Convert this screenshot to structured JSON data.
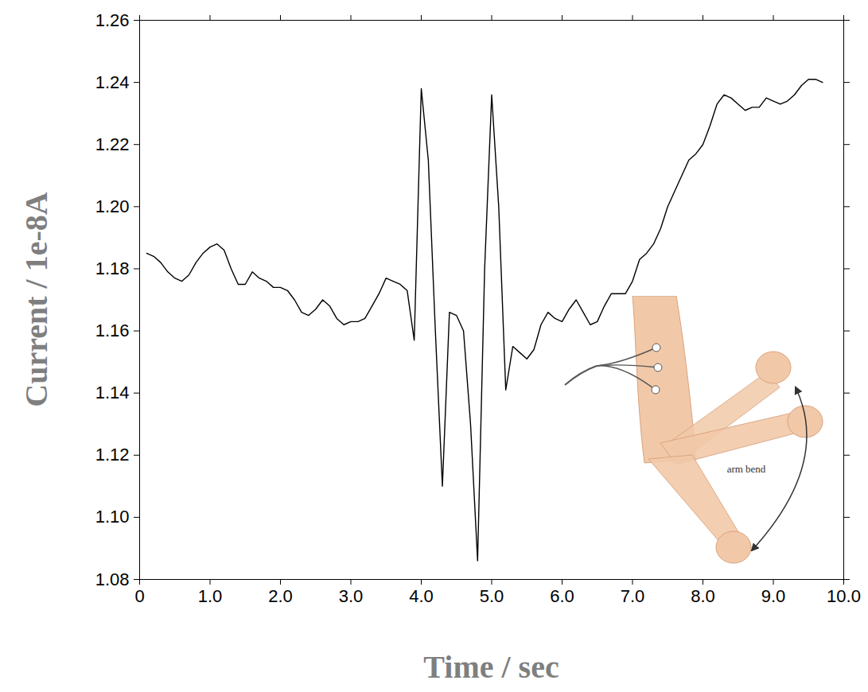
{
  "chart_data": {
    "type": "line",
    "x_label": "Time / sec",
    "y_label": "Current / 1e-8A",
    "annotations": [
      "arm bend"
    ],
    "color": "#000000",
    "grid": false,
    "xlim": [
      0,
      10
    ],
    "xticks": [
      {
        "value": 0,
        "label": "0"
      },
      {
        "value": 1,
        "label": "1.0"
      },
      {
        "value": 2,
        "label": "2.0"
      },
      {
        "value": 3,
        "label": "3.0"
      },
      {
        "value": 4,
        "label": "4.0"
      },
      {
        "value": 5,
        "label": "5.0"
      },
      {
        "value": 6,
        "label": "6.0"
      },
      {
        "value": 7,
        "label": "7.0"
      },
      {
        "value": 8,
        "label": "8.0"
      },
      {
        "value": 9,
        "label": "9.0"
      },
      {
        "value": 10,
        "label": "10.0"
      }
    ],
    "ylim": [
      1.08,
      1.26
    ],
    "yticks": [
      1.08,
      {
        "value": 1.1,
        "label": "1.10"
      },
      1.12,
      1.14,
      1.16,
      1.18,
      {
        "value": 1.2,
        "label": "1.20"
      },
      1.22,
      1.24,
      1.26
    ],
    "x": [
      0.1,
      0.2,
      0.3,
      0.4,
      0.5,
      0.6,
      0.7,
      0.8,
      0.9,
      1.0,
      1.1,
      1.2,
      1.3,
      1.4,
      1.5,
      1.6,
      1.7,
      1.8,
      1.9,
      2.0,
      2.1,
      2.2,
      2.3,
      2.4,
      2.5,
      2.6,
      2.7,
      2.8,
      2.9,
      3.0,
      3.1,
      3.2,
      3.3,
      3.4,
      3.5,
      3.6,
      3.7,
      3.8,
      3.9,
      4.0,
      4.1,
      4.2,
      4.3,
      4.4,
      4.5,
      4.6,
      4.7,
      4.8,
      4.9,
      5.0,
      5.1,
      5.2,
      5.3,
      5.4,
      5.5,
      5.6,
      5.7,
      5.8,
      5.9,
      6.0,
      6.1,
      6.2,
      6.3,
      6.4,
      6.5,
      6.6,
      6.7,
      6.8,
      6.9,
      7.0,
      7.1,
      7.2,
      7.3,
      7.4,
      7.5,
      7.6,
      7.7,
      7.8,
      7.9,
      8.0,
      8.1,
      8.2,
      8.3,
      8.4,
      8.5,
      8.6,
      8.7,
      8.8,
      8.9,
      9.0,
      9.1,
      9.2,
      9.3,
      9.4,
      9.5,
      9.6,
      9.7
    ],
    "values": [
      1.185,
      1.184,
      1.182,
      1.179,
      1.177,
      1.176,
      1.178,
      1.182,
      1.185,
      1.187,
      1.188,
      1.186,
      1.18,
      1.175,
      1.175,
      1.179,
      1.177,
      1.176,
      1.174,
      1.174,
      1.173,
      1.17,
      1.166,
      1.165,
      1.167,
      1.17,
      1.168,
      1.164,
      1.162,
      1.163,
      1.163,
      1.164,
      1.168,
      1.172,
      1.177,
      1.176,
      1.175,
      1.173,
      1.157,
      1.238,
      1.215,
      1.16,
      1.11,
      1.166,
      1.165,
      1.16,
      1.13,
      1.086,
      1.18,
      1.236,
      1.2,
      1.141,
      1.155,
      1.153,
      1.151,
      1.154,
      1.162,
      1.166,
      1.164,
      1.163,
      1.167,
      1.17,
      1.166,
      1.162,
      1.163,
      1.168,
      1.172,
      1.172,
      1.172,
      1.176,
      1.183,
      1.185,
      1.188,
      1.193,
      1.2,
      1.205,
      1.21,
      1.215,
      1.217,
      1.22,
      1.226,
      1.233,
      1.236,
      1.235,
      1.233,
      1.231,
      1.232,
      1.232,
      1.235,
      1.234,
      1.233,
      1.234,
      1.236,
      1.239,
      1.241,
      1.241,
      1.24
    ]
  }
}
